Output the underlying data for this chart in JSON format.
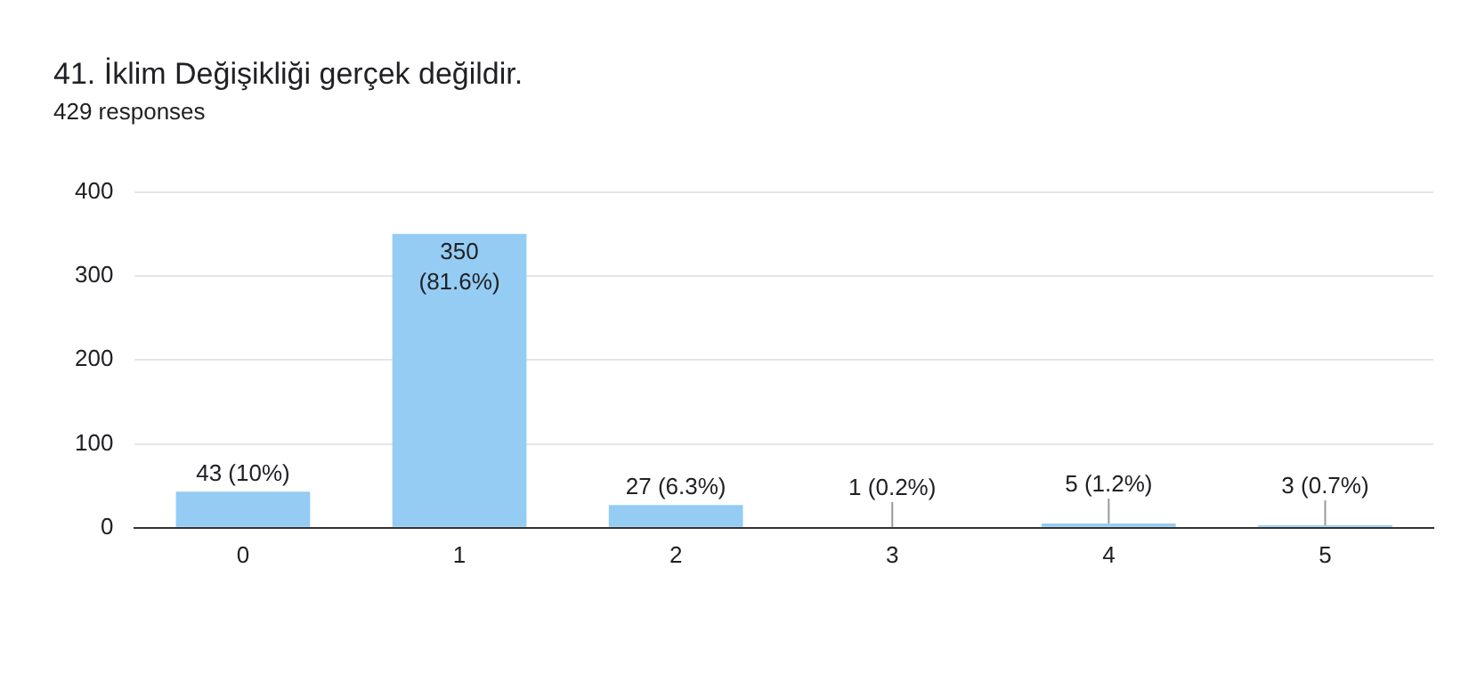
{
  "chart_data": {
    "type": "bar",
    "title": "41. İklim Değişikliği gerçek değildir.",
    "subtitle": "429 responses",
    "categories": [
      "0",
      "1",
      "2",
      "3",
      "4",
      "5"
    ],
    "values": [
      43,
      350,
      27,
      1,
      5,
      3
    ],
    "value_labels": [
      "43 (10%)",
      "350 (81.6%)",
      "27 (6.3%)",
      "1 (0.2%)",
      "5 (1.2%)",
      "3 (0.7%)"
    ],
    "color": "#95ccf3",
    "ylim": [
      0,
      400
    ],
    "yticks": [
      0,
      100,
      200,
      300,
      400
    ],
    "grid": "y",
    "legend": false
  }
}
